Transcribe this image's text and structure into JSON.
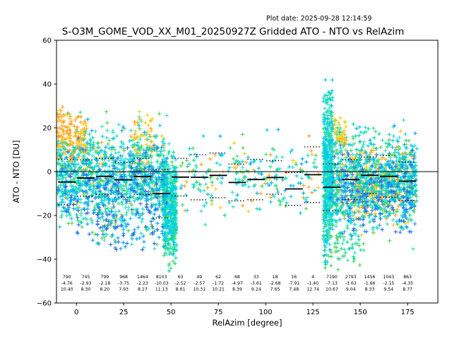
{
  "header": {
    "plot_date": "Plot date: 2025-09-28 12:14:59",
    "title": "S-O3M_GOME_VOD_XX_M01_20250927Z Gridded ATO - NTO vs RelAzim"
  },
  "chart_data": {
    "type": "scatter",
    "title": "S-O3M_GOME_VOD_XX_M01_20250927Z Gridded ATO - NTO vs RelAzim",
    "xlabel": "RelAzim [degree]",
    "ylabel": "ATO - NTO [DU]",
    "marker": "+",
    "grid": false,
    "xlim": [
      -10.5,
      191
    ],
    "ylim": [
      -60,
      60
    ],
    "xticks": [
      0,
      25,
      50,
      75,
      100,
      125,
      150,
      175
    ],
    "xtick_labels": [
      "0",
      "25",
      "50",
      "75",
      "100",
      "125",
      "150",
      "175"
    ],
    "yticks": [
      60,
      40,
      20,
      0,
      -20,
      -40,
      -60
    ],
    "ytick_labels": [
      "60",
      "40",
      "20",
      "0",
      "−20",
      "−40",
      "−60"
    ],
    "zero_line": 0,
    "bin_stats": {
      "bin_width_deg": 10,
      "bin_centers": [
        -5,
        5,
        15,
        25,
        35,
        45,
        55,
        65,
        75,
        85,
        95,
        105,
        115,
        125,
        135,
        145,
        155,
        165,
        175
      ],
      "counts": [
        "790",
        "745",
        "799",
        "968",
        "1464",
        "8103",
        "63",
        "49",
        "62",
        "68",
        "33",
        "18",
        "16",
        "4",
        "7190",
        "2793",
        "1456",
        "1043",
        "863"
      ],
      "means": [
        "-4.76",
        "-2.93",
        "-2.18",
        "-3.75",
        "-2.23",
        "-10.03",
        "-2.52",
        "-2.57",
        "-1.72",
        "-4.97",
        "-3.61",
        "-2.68",
        "-7.91",
        "-1.40",
        "-7.13",
        "-3.63",
        "-1.66",
        "-2.15",
        "-4.35"
      ],
      "stds": [
        "10.40",
        "8.30",
        "8.20",
        "7.93",
        "8.27",
        "11.13",
        "8.61",
        "10.31",
        "10.21",
        "8.39",
        "9.24",
        "7.65",
        "7.48",
        "12.74",
        "10.67",
        "9.04",
        "8.33",
        "9.54",
        "8.77"
      ]
    },
    "palette": [
      "#ff9e1b",
      "#ffc61e",
      "#cddc29",
      "#4fd356",
      "#00dc8c",
      "#2fdec8",
      "#00cde9",
      "#00a2f3",
      "#2e66e8"
    ],
    "clusters": [
      {
        "name": "left-main",
        "x": [
          -10,
          48
        ],
        "y_mean": -3,
        "y_sd": 10,
        "y_clip": [
          -36,
          33
        ],
        "n": 1200,
        "colors": [
          [
            5,
            30
          ],
          [
            6,
            24
          ],
          [
            3,
            16
          ],
          [
            4,
            10
          ],
          [
            7,
            8
          ],
          [
            8,
            5
          ],
          [
            1,
            4
          ],
          [
            0,
            3
          ]
        ]
      },
      {
        "name": "left-orange-top",
        "x": [
          -10,
          6
        ],
        "y_mean": 14,
        "y_sd": 8,
        "y_clip": [
          0,
          30
        ],
        "n": 190,
        "colors": [
          [
            0,
            60
          ],
          [
            1,
            40
          ]
        ]
      },
      {
        "name": "left-gold-spike",
        "x": [
          30,
          41
        ],
        "y_mean": 14,
        "y_sd": 8,
        "y_clip": [
          -2,
          28
        ],
        "n": 70,
        "colors": [
          [
            1,
            50
          ],
          [
            0,
            30
          ],
          [
            2,
            20
          ]
        ]
      },
      {
        "name": "left-blue",
        "x": [
          -6,
          46
        ],
        "y_mean": -12,
        "y_sd": 9,
        "y_clip": [
          -33,
          14
        ],
        "n": 160,
        "colors": [
          [
            7,
            50
          ],
          [
            8,
            50
          ]
        ]
      },
      {
        "name": "left-tail",
        "x": [
          8,
          46
        ],
        "y_mean": -26,
        "y_sd": 6,
        "y_clip": [
          -36,
          -14
        ],
        "n": 90,
        "colors": [
          [
            7,
            30
          ],
          [
            8,
            20
          ],
          [
            3,
            25
          ],
          [
            5,
            25
          ]
        ]
      },
      {
        "name": "dip-streak",
        "x": [
          46,
          53
        ],
        "y_mean": -18,
        "y_sd": 12,
        "y_clip": [
          -46,
          24
        ],
        "n": 480,
        "colors": [
          [
            4,
            30
          ],
          [
            5,
            28
          ],
          [
            3,
            22
          ],
          [
            6,
            20
          ]
        ]
      },
      {
        "name": "mid-sparse",
        "x": [
          55,
          128
        ],
        "y_mean": -3,
        "y_sd": 9,
        "y_clip": [
          -26,
          20
        ],
        "n": 240,
        "colors": [
          [
            5,
            24
          ],
          [
            6,
            20
          ],
          [
            3,
            15
          ],
          [
            1,
            12
          ],
          [
            0,
            10
          ],
          [
            4,
            10
          ],
          [
            7,
            9
          ]
        ]
      },
      {
        "name": "streak-133",
        "x": [
          130.5,
          135.5
        ],
        "y_mean": -2,
        "y_sd": 19,
        "y_clip": [
          -45,
          42
        ],
        "n": 560,
        "colors": [
          [
            5,
            34
          ],
          [
            6,
            28
          ],
          [
            4,
            20
          ],
          [
            3,
            18
          ]
        ]
      },
      {
        "name": "right-main",
        "x": [
          134,
          180
        ],
        "y_mean": -4,
        "y_sd": 10,
        "y_clip": [
          -44,
          27
        ],
        "n": 1150,
        "colors": [
          [
            5,
            27
          ],
          [
            6,
            22
          ],
          [
            3,
            15
          ],
          [
            4,
            10
          ],
          [
            7,
            7
          ],
          [
            8,
            5
          ],
          [
            1,
            7
          ],
          [
            0,
            7
          ]
        ]
      },
      {
        "name": "right-gold-top",
        "x": [
          134,
          143
        ],
        "y_mean": 17,
        "y_sd": 5,
        "y_clip": [
          5,
          26
        ],
        "n": 60,
        "colors": [
          [
            1,
            60
          ],
          [
            0,
            20
          ],
          [
            2,
            20
          ]
        ]
      },
      {
        "name": "right-orange",
        "x": [
          146,
          172
        ],
        "y_mean": -8,
        "y_sd": 7,
        "y_clip": [
          -22,
          9
        ],
        "n": 210,
        "colors": [
          [
            0,
            55
          ],
          [
            1,
            45
          ]
        ]
      },
      {
        "name": "right-blue",
        "x": [
          140,
          178
        ],
        "y_mean": -11,
        "y_sd": 9,
        "y_clip": [
          -30,
          18
        ],
        "n": 130,
        "colors": [
          [
            7,
            50
          ],
          [
            8,
            50
          ]
        ]
      },
      {
        "name": "right-tail",
        "x": [
          136,
          152
        ],
        "y_mean": -30,
        "y_sd": 8,
        "y_clip": [
          -45,
          -15
        ],
        "n": 60,
        "colors": [
          [
            3,
            40
          ],
          [
            4,
            30
          ],
          [
            5,
            30
          ]
        ]
      }
    ]
  }
}
